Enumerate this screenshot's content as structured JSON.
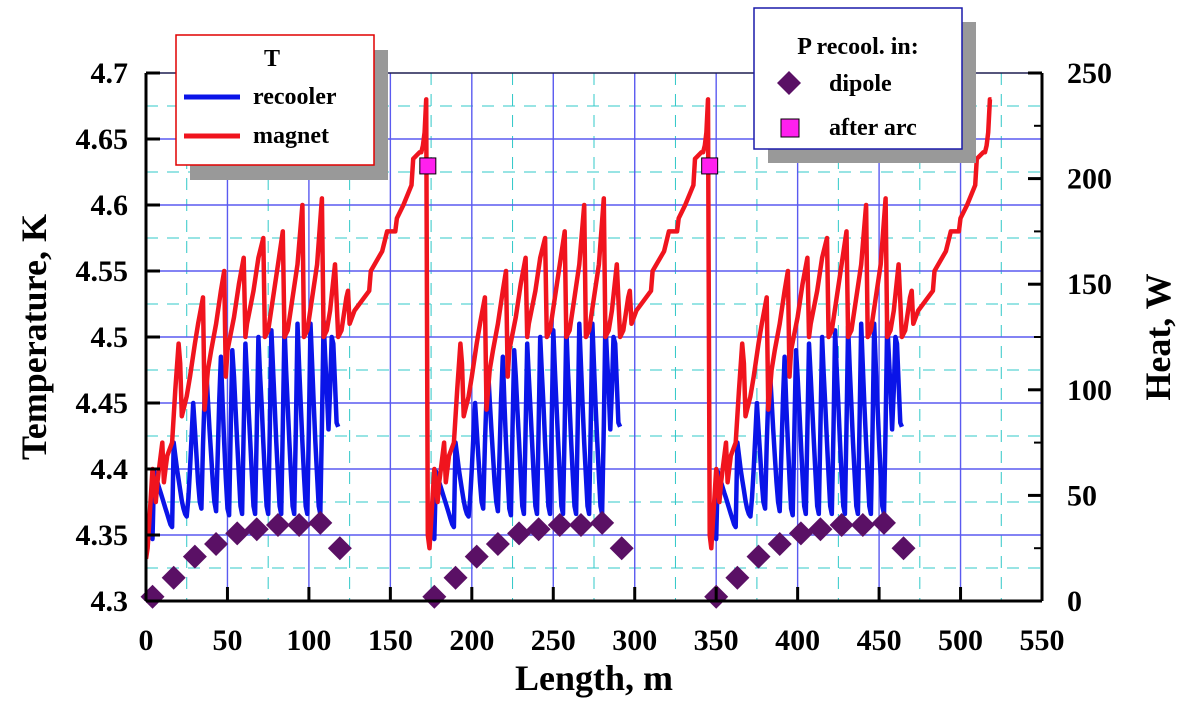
{
  "chart_data": {
    "type": "line",
    "xlabel": "Length, m",
    "ylabel": "Temperature, K",
    "y2label": "Heat, W",
    "xlim": [
      0,
      550
    ],
    "ylim": [
      4.3,
      4.7
    ],
    "y2lim": [
      0,
      250
    ],
    "grid": true,
    "x_ticks": [
      "0",
      "50",
      "100",
      "150",
      "200",
      "250",
      "300",
      "350",
      "400",
      "450",
      "500",
      "550"
    ],
    "y_ticks": [
      "4.3",
      "4.35",
      "4.4",
      "4.45",
      "4.5",
      "4.55",
      "4.6",
      "4.65",
      "4.7"
    ],
    "y2_ticks": [
      "0",
      "50",
      "100",
      "150",
      "200",
      "250"
    ],
    "legend_left": {
      "title": "T",
      "entries": [
        {
          "label": "recooler",
          "color": "#0a14e8"
        },
        {
          "label": "magnet",
          "color": "#f0141e"
        }
      ]
    },
    "legend_right": {
      "title": "P recool. in:",
      "entries": [
        {
          "label": "dipole",
          "color": "#5a1065",
          "marker": "diamond"
        },
        {
          "label": "after arc",
          "color": "#ff20ee",
          "marker": "square"
        }
      ]
    },
    "series": [
      {
        "name": "recooler",
        "color": "#0a14e8",
        "x": [
          0,
          1,
          2,
          3,
          4,
          5,
          6,
          7,
          8,
          9,
          10,
          11,
          12,
          13,
          14,
          15,
          16,
          17,
          18,
          19,
          20,
          21,
          22,
          23,
          24,
          25,
          26,
          27,
          28,
          29,
          30,
          31,
          32,
          33,
          34,
          35,
          36,
          37,
          38,
          39,
          40,
          41,
          42,
          43,
          44,
          45,
          46,
          47,
          48,
          49,
          50,
          51,
          52,
          53,
          54,
          55,
          56,
          57,
          58,
          59,
          60,
          61,
          62,
          63,
          64,
          65,
          66,
          67,
          68,
          69,
          70,
          71,
          72,
          73,
          74,
          75,
          76,
          77,
          78,
          79,
          80,
          81,
          82,
          83,
          84,
          85,
          86,
          87,
          88,
          89,
          90,
          91,
          92,
          93,
          94,
          95,
          96,
          97,
          98,
          99,
          100,
          101,
          102,
          103,
          104,
          105,
          106,
          107,
          108,
          109,
          110,
          111,
          112,
          113,
          114,
          115,
          116,
          117,
          118
        ],
        "y": [
          4.35,
          4.352,
          4.355,
          4.35,
          4.347,
          4.398,
          4.394,
          4.39,
          4.386,
          4.382,
          4.378,
          4.374,
          4.37,
          4.366,
          4.362,
          4.358,
          4.356,
          4.42,
          4.41,
          4.4,
          4.392,
          4.384,
          4.376,
          4.37,
          4.366,
          4.364,
          4.378,
          4.4,
          4.425,
          4.45,
          4.43,
          4.41,
          4.39,
          4.375,
          4.37,
          4.418,
          4.455,
          4.475,
          4.452,
          4.43,
          4.41,
          4.39,
          4.375,
          4.368,
          4.41,
          4.453,
          4.485,
          4.45,
          4.42,
          4.393,
          4.37,
          4.365,
          4.43,
          4.49,
          4.47,
          4.445,
          4.42,
          4.395,
          4.372,
          4.366,
          4.43,
          4.495,
          4.47,
          4.445,
          4.42,
          4.395,
          4.372,
          4.366,
          4.43,
          4.5,
          4.472,
          4.448,
          4.42,
          4.395,
          4.372,
          4.366,
          4.43,
          4.505,
          4.475,
          4.448,
          4.42,
          4.395,
          4.372,
          4.366,
          4.432,
          4.508,
          4.475,
          4.448,
          4.42,
          4.395,
          4.372,
          4.366,
          4.432,
          4.51,
          4.478,
          4.448,
          4.42,
          4.395,
          4.372,
          4.366,
          4.432,
          4.51,
          4.478,
          4.448,
          4.42,
          4.395,
          4.372,
          4.366,
          4.432,
          4.512,
          4.485,
          4.46,
          4.43,
          4.46,
          4.5,
          4.495,
          4.465,
          4.435,
          4.432
        ]
      }
    ],
    "markers": [
      {
        "name": "dipole",
        "marker": "diamond",
        "x": [
          4,
          17,
          30,
          43,
          56,
          68,
          81,
          94,
          107,
          119
        ],
        "y2": [
          2,
          11,
          21,
          27,
          32,
          34,
          36,
          36,
          37,
          25
        ]
      },
      {
        "name": "after arc",
        "marker": "square",
        "x": [
          173,
          346
        ],
        "y2": [
          206,
          206
        ]
      }
    ]
  }
}
